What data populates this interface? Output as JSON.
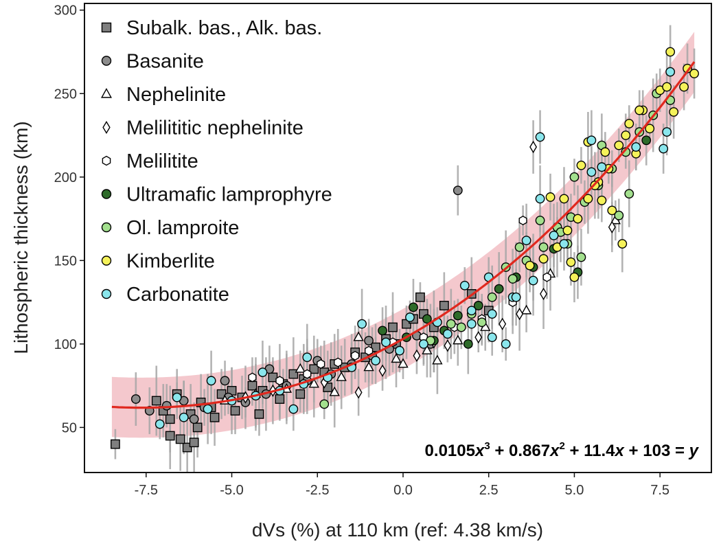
{
  "chart_data": {
    "type": "scatter",
    "xlabel": "dVs (%) at 110 km (ref: 4.38 km/s)",
    "ylabel": "Lithospheric thickness (km)",
    "xlim": [
      -9.3,
      9.0
    ],
    "ylim": [
      23,
      304
    ],
    "x_ticks": [
      -7.5,
      -5.0,
      -2.5,
      0.0,
      2.5,
      5.0,
      7.5
    ],
    "x_tick_labels": [
      "-7.5",
      "-5.0",
      "-2.5",
      "0.0",
      "2.5",
      "5.0",
      "7.5"
    ],
    "y_ticks": [
      50,
      100,
      150,
      200,
      250,
      300
    ],
    "y_tick_labels": [
      "50",
      "100",
      "150",
      "200",
      "250",
      "300"
    ],
    "grid": false,
    "legend_position": "top-left",
    "fit": {
      "coefficients": [
        0.0105,
        0.867,
        11.4,
        103
      ],
      "x_range": [
        -8.5,
        8.5
      ],
      "band_half_width": 18,
      "line_color": "#e0281e",
      "band_color": "#f0b6bc",
      "equation_parts": [
        "0.0105",
        "x",
        "3",
        " + 0.867",
        "x",
        "2",
        " + 11.4",
        "x",
        " + 103 = ",
        "y"
      ]
    },
    "series": [
      {
        "name": "Subalk. bas., Alk. bas.",
        "marker": "square",
        "color": "#7f7f7f",
        "points": [
          [
            -8.4,
            40
          ],
          [
            -6.3,
            38
          ],
          [
            -7.2,
            66
          ],
          [
            -6.8,
            55
          ],
          [
            -6.5,
            43
          ],
          [
            -6.2,
            58
          ],
          [
            -5.9,
            65
          ],
          [
            -5.6,
            62
          ],
          [
            -5.3,
            70
          ],
          [
            -5.0,
            72
          ],
          [
            -4.7,
            68
          ],
          [
            -4.4,
            75
          ],
          [
            -4.1,
            72
          ],
          [
            -3.8,
            80
          ],
          [
            -3.5,
            76
          ],
          [
            -3.2,
            82
          ],
          [
            -2.9,
            79
          ],
          [
            -2.6,
            85
          ],
          [
            -2.3,
            83
          ],
          [
            -2.0,
            88
          ],
          [
            -1.7,
            86
          ],
          [
            -1.4,
            95
          ],
          [
            -1.1,
            92
          ],
          [
            -0.8,
            98
          ],
          [
            -0.5,
            103
          ],
          [
            -0.2,
            100
          ],
          [
            0.1,
            112
          ],
          [
            0.3,
            115
          ],
          [
            0.6,
            118
          ],
          [
            0.9,
            110
          ],
          [
            -0.3,
            110
          ],
          [
            1.2,
            123
          ],
          [
            2.5,
            120
          ],
          [
            -6.0,
            50
          ],
          [
            -5.5,
            56
          ],
          [
            -7.0,
            60
          ],
          [
            -6.6,
            70
          ],
          [
            -4.9,
            60
          ],
          [
            -4.2,
            58
          ],
          [
            -3.6,
            67
          ],
          [
            -3.0,
            70
          ],
          [
            -2.2,
            74
          ],
          [
            0.5,
            128
          ],
          [
            2.0,
            130
          ],
          [
            -6.1,
            41
          ],
          [
            -6.8,
            45
          ]
        ]
      },
      {
        "name": "Basanite",
        "marker": "circle",
        "color": "#8c8c8c",
        "points": [
          [
            -7.8,
            67
          ],
          [
            1.6,
            192
          ],
          [
            -7.4,
            60
          ],
          [
            -6.9,
            63
          ],
          [
            -6.4,
            66
          ],
          [
            -5.8,
            62
          ],
          [
            -5.1,
            68
          ],
          [
            -4.6,
            65
          ],
          [
            -4.0,
            70
          ],
          [
            -3.4,
            75
          ],
          [
            -2.8,
            78
          ],
          [
            -2.1,
            82
          ],
          [
            -1.5,
            88
          ],
          [
            -0.9,
            93
          ],
          [
            -0.4,
            97
          ],
          [
            0.4,
            105
          ],
          [
            -3.9,
            85
          ],
          [
            -2.5,
            90
          ],
          [
            -5.2,
            78
          ],
          [
            -1.0,
            102
          ],
          [
            -6.1,
            55
          ],
          [
            0.8,
            100
          ]
        ]
      },
      {
        "name": "Nephelinite",
        "marker": "triangle",
        "color": "#ffffff",
        "points": [
          [
            -5.2,
            66
          ],
          [
            -4.3,
            70
          ],
          [
            -3.4,
            73
          ],
          [
            -2.6,
            76
          ],
          [
            -1.8,
            80
          ],
          [
            -1.0,
            86
          ],
          [
            -0.2,
            91
          ],
          [
            0.7,
            96
          ],
          [
            1.6,
            102
          ],
          [
            2.4,
            110
          ],
          [
            3.6,
            120
          ],
          [
            6.2,
            174
          ],
          [
            -3.0,
            85
          ],
          [
            -1.3,
            104
          ],
          [
            0.0,
            88
          ],
          [
            4.3,
            142
          ],
          [
            -2.0,
            71
          ],
          [
            1.0,
            90
          ]
        ]
      },
      {
        "name": "Melilititic nephelinite",
        "marker": "diamond",
        "color": "#ffffff",
        "points": [
          [
            3.8,
            218
          ],
          [
            6.1,
            170
          ],
          [
            -1.3,
            71
          ],
          [
            -2.3,
            77
          ],
          [
            -0.6,
            84
          ],
          [
            0.4,
            93
          ],
          [
            1.3,
            99
          ],
          [
            2.2,
            104
          ],
          [
            3.4,
            118
          ],
          [
            4.1,
            130
          ],
          [
            -3.8,
            72
          ],
          [
            -4.6,
            68
          ],
          [
            0.9,
            101
          ],
          [
            2.9,
            112
          ]
        ]
      },
      {
        "name": "Melilitite",
        "marker": "hexagon",
        "color": "#ffffff",
        "points": [
          [
            3.5,
            174
          ],
          [
            -3.6,
            78
          ],
          [
            -2.8,
            82
          ],
          [
            -1.9,
            89
          ],
          [
            -1.0,
            96
          ],
          [
            -0.3,
            101
          ],
          [
            0.6,
            104
          ],
          [
            1.5,
            110
          ],
          [
            2.3,
            115
          ],
          [
            3.2,
            125
          ],
          [
            4.2,
            140
          ],
          [
            -4.4,
            80
          ],
          [
            -2.4,
            88
          ],
          [
            -1.4,
            93
          ]
        ]
      },
      {
        "name": "Ultramafic lamprophyre",
        "marker": "circle",
        "color": "#2e6b2a",
        "points": [
          [
            5.1,
            143
          ],
          [
            7.1,
            222
          ],
          [
            -0.6,
            108
          ],
          [
            0.1,
            104
          ],
          [
            0.7,
            115
          ],
          [
            1.2,
            108
          ],
          [
            1.6,
            117
          ],
          [
            2.2,
            123
          ],
          [
            2.8,
            133
          ],
          [
            3.3,
            140
          ],
          [
            3.8,
            146
          ],
          [
            0.9,
            102
          ],
          [
            1.9,
            100
          ],
          [
            0.3,
            122
          ],
          [
            4.4,
            157
          ]
        ]
      },
      {
        "name": "Ol. lamproite",
        "marker": "circle",
        "color": "#a3e08e",
        "points": [
          [
            -2.3,
            64
          ],
          [
            0.8,
            102
          ],
          [
            1.4,
            112
          ],
          [
            2.0,
            118
          ],
          [
            2.6,
            128
          ],
          [
            3.2,
            139
          ],
          [
            3.6,
            150
          ],
          [
            4.1,
            158
          ],
          [
            4.5,
            170
          ],
          [
            4.9,
            176
          ],
          [
            5.3,
            185
          ],
          [
            5.7,
            195
          ],
          [
            6.1,
            205
          ],
          [
            6.5,
            215
          ],
          [
            6.9,
            227
          ],
          [
            7.3,
            237
          ],
          [
            7.8,
            246
          ],
          [
            6.6,
            190
          ],
          [
            5.8,
            219
          ],
          [
            4.6,
            167
          ],
          [
            5.2,
            152
          ],
          [
            4.0,
            174
          ],
          [
            3.4,
            158
          ],
          [
            2.3,
            113
          ],
          [
            1.7,
            110
          ],
          [
            7.4,
            250
          ],
          [
            5.0,
            200
          ],
          [
            6.3,
            177
          ],
          [
            4.8,
            160
          ],
          [
            3.0,
            146
          ]
        ]
      },
      {
        "name": "Kimberlite",
        "marker": "circle",
        "color": "#f5f25a",
        "points": [
          [
            7.8,
            275
          ],
          [
            8.5,
            262
          ],
          [
            8.2,
            254
          ],
          [
            7.5,
            252
          ],
          [
            7.0,
            240
          ],
          [
            6.6,
            232
          ],
          [
            6.3,
            219
          ],
          [
            6.0,
            205
          ],
          [
            5.7,
            197
          ],
          [
            5.4,
            187
          ],
          [
            5.1,
            175
          ],
          [
            4.8,
            168
          ],
          [
            4.5,
            158
          ],
          [
            4.1,
            151
          ],
          [
            3.7,
            147
          ],
          [
            5.0,
            140
          ],
          [
            4.9,
            149
          ],
          [
            6.5,
            225
          ],
          [
            5.9,
            215
          ],
          [
            5.2,
            207
          ],
          [
            6.8,
            214
          ],
          [
            7.2,
            229
          ],
          [
            7.7,
            254
          ],
          [
            6.1,
            180
          ],
          [
            5.6,
            195
          ],
          [
            4.7,
            187
          ],
          [
            5.4,
            221
          ],
          [
            6.4,
            160
          ],
          [
            7.9,
            239
          ],
          [
            8.3,
            265
          ],
          [
            4.3,
            188
          ],
          [
            5.8,
            186
          ],
          [
            6.9,
            240
          ]
        ]
      },
      {
        "name": "Carbonatite",
        "marker": "circle",
        "color": "#8ae6ec",
        "points": [
          [
            -7.1,
            52
          ],
          [
            -6.4,
            56
          ],
          [
            -5.7,
            61
          ],
          [
            -5.0,
            66
          ],
          [
            -4.3,
            69
          ],
          [
            -3.6,
            72
          ],
          [
            -2.9,
            76
          ],
          [
            -2.2,
            80
          ],
          [
            -1.5,
            86
          ],
          [
            -0.8,
            90
          ],
          [
            -0.1,
            96
          ],
          [
            0.6,
            100
          ],
          [
            1.3,
            106
          ],
          [
            2.0,
            112
          ],
          [
            2.6,
            118
          ],
          [
            3.2,
            128
          ],
          [
            3.8,
            138
          ],
          [
            4.0,
            187
          ],
          [
            4.4,
            165
          ],
          [
            5.5,
            222
          ],
          [
            5.8,
            206
          ],
          [
            4.0,
            224
          ],
          [
            7.6,
            217
          ],
          [
            7.7,
            227
          ],
          [
            7.8,
            263
          ],
          [
            2.0,
            120
          ],
          [
            2.6,
            104
          ],
          [
            3.0,
            100
          ],
          [
            1.0,
            113
          ],
          [
            -0.5,
            101
          ],
          [
            -1.2,
            112
          ],
          [
            -2.8,
            92
          ],
          [
            -4.1,
            83
          ],
          [
            -5.6,
            78
          ],
          [
            3.3,
            128
          ],
          [
            4.7,
            160
          ],
          [
            5.5,
            203
          ],
          [
            6.8,
            218
          ],
          [
            -3.2,
            61
          ],
          [
            2.5,
            140
          ],
          [
            1.8,
            135
          ],
          [
            0.2,
            116
          ],
          [
            -6.6,
            68
          ],
          [
            3.6,
            162
          ]
        ]
      }
    ]
  },
  "legend": {
    "items": [
      {
        "label": "Subalk. bas., Alk. bas.",
        "marker": "square",
        "color": "#7f7f7f"
      },
      {
        "label": "Basanite",
        "marker": "circle",
        "color": "#8c8c8c"
      },
      {
        "label": "Nephelinite",
        "marker": "triangle",
        "color": "#ffffff"
      },
      {
        "label": "Melilititic nephelinite",
        "marker": "diamond",
        "color": "#ffffff"
      },
      {
        "label": "Melilitite",
        "marker": "hexagon",
        "color": "#ffffff"
      },
      {
        "label": "Ultramafic lamprophyre",
        "marker": "circle",
        "color": "#2e6b2a"
      },
      {
        "label": "Ol. lamproite",
        "marker": "circle",
        "color": "#a3e08e"
      },
      {
        "label": "Kimberlite",
        "marker": "circle",
        "color": "#f5f25a"
      },
      {
        "label": "Carbonatite",
        "marker": "circle",
        "color": "#8ae6ec"
      }
    ]
  }
}
